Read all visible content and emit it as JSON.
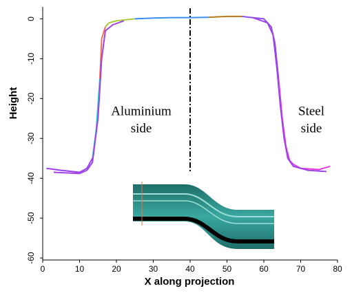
{
  "chart_data": {
    "type": "line",
    "xlabel": "X along projection",
    "ylabel": "Height",
    "xlim": [
      0,
      80
    ],
    "xticks": [
      0,
      10,
      20,
      30,
      40,
      50,
      60,
      70,
      80
    ],
    "ylim": [
      -60.5,
      3
    ],
    "yticks": [
      0,
      -10,
      -20,
      -30,
      -40,
      -50,
      -60
    ],
    "vline": 40,
    "annotations": [
      {
        "lines": [
          "Aluminium",
          "side"
        ]
      },
      {
        "lines": [
          "Steel",
          "side"
        ]
      }
    ],
    "series": [
      {
        "color": "#9a3cf0",
        "x": [
          1,
          5,
          10,
          12,
          13.5
        ],
        "values": [
          -37.5,
          -38,
          -38.5,
          -37.5,
          -35
        ]
      },
      {
        "color": "#22d6c8",
        "x": [
          13.5,
          14.5,
          15.5
        ],
        "values": [
          -35,
          -28,
          -15
        ]
      },
      {
        "color": "#f07050",
        "x": [
          15.5,
          16,
          17
        ],
        "values": [
          -15,
          -5,
          -2
        ]
      },
      {
        "color": "#a8cc3a",
        "x": [
          17,
          18,
          20,
          25
        ],
        "values": [
          -2,
          -1,
          -0.5,
          0
        ]
      },
      {
        "color": "#3a8ef0",
        "x": [
          25,
          30,
          35,
          40,
          45
        ],
        "values": [
          0,
          0.2,
          0.3,
          0.3,
          0.4
        ]
      },
      {
        "color": "#b87a10",
        "x": [
          45,
          50,
          54
        ],
        "values": [
          0.4,
          0.6,
          0.6
        ]
      },
      {
        "color": "#8a50f0",
        "x": [
          54,
          60,
          62,
          63,
          64
        ],
        "values": [
          0.6,
          0,
          -2,
          -6,
          -15
        ]
      },
      {
        "color": "#e040e0",
        "x": [
          64,
          65,
          66,
          67,
          68,
          70,
          75,
          78
        ],
        "values": [
          -15,
          -25,
          -32,
          -35.5,
          -36.5,
          -37.5,
          -37.8,
          -37
        ]
      },
      {
        "color": "#a040e8",
        "x": [
          3,
          10,
          12,
          13.5,
          15,
          16,
          17,
          19,
          22
        ],
        "values": [
          -38.5,
          -38.8,
          -38,
          -36,
          -25,
          -10,
          -3,
          -1.5,
          -0.5
        ]
      },
      {
        "color": "#a040e8",
        "x": [
          57,
          61,
          62.5,
          63.5,
          64.5,
          65.5,
          66.5,
          68,
          72,
          77
        ],
        "values": [
          0.3,
          -1,
          -4,
          -12,
          -22,
          -30,
          -35,
          -37,
          -38,
          -38.3
        ]
      }
    ]
  }
}
